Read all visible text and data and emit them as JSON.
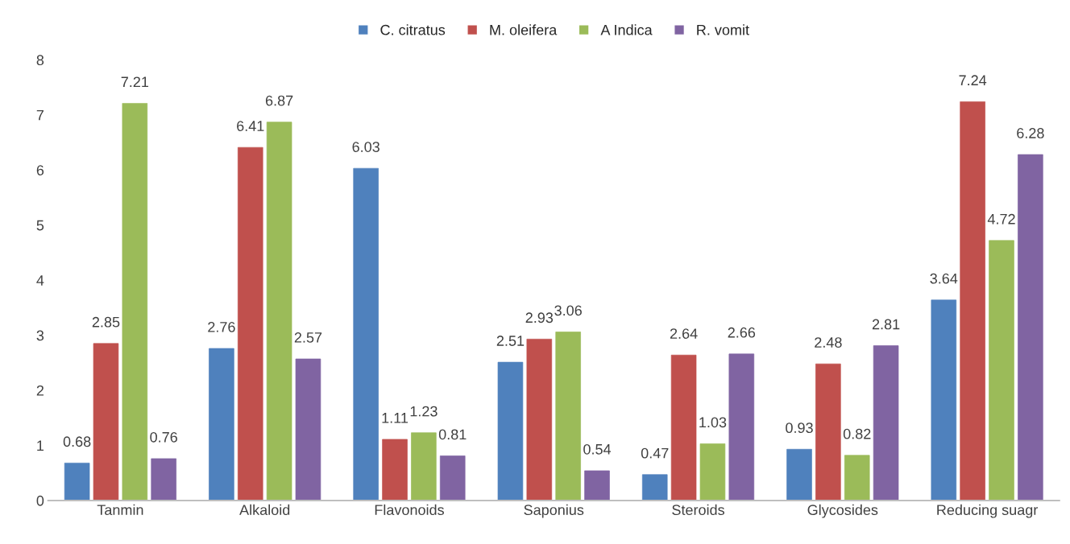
{
  "chart_data": {
    "type": "bar",
    "categories": [
      "Tanmin",
      "Alkaloid",
      "Flavonoids",
      "Saponius",
      "Steroids",
      "Glycosides",
      "Reducing suagr"
    ],
    "series": [
      {
        "name": "C. citratus",
        "color": "#4f81bd",
        "values": [
          0.68,
          2.76,
          6.03,
          2.51,
          0.47,
          0.93,
          3.64
        ]
      },
      {
        "name": "M. oleifera",
        "color": "#c0504d",
        "values": [
          2.85,
          6.41,
          1.11,
          2.93,
          2.64,
          2.48,
          7.24
        ]
      },
      {
        "name": "A Indica",
        "color": "#9bbb59",
        "values": [
          7.21,
          6.87,
          1.23,
          3.06,
          1.03,
          0.82,
          4.72
        ]
      },
      {
        "name": "R. vomit",
        "color": "#8064a2",
        "values": [
          0.76,
          2.57,
          0.81,
          0.54,
          2.66,
          2.81,
          6.28
        ]
      }
    ],
    "ylim": [
      0,
      8
    ],
    "yticks": [
      0,
      1,
      2,
      3,
      4,
      5,
      6,
      7,
      8
    ],
    "grid": false,
    "legend": "top",
    "data_labels": true
  }
}
